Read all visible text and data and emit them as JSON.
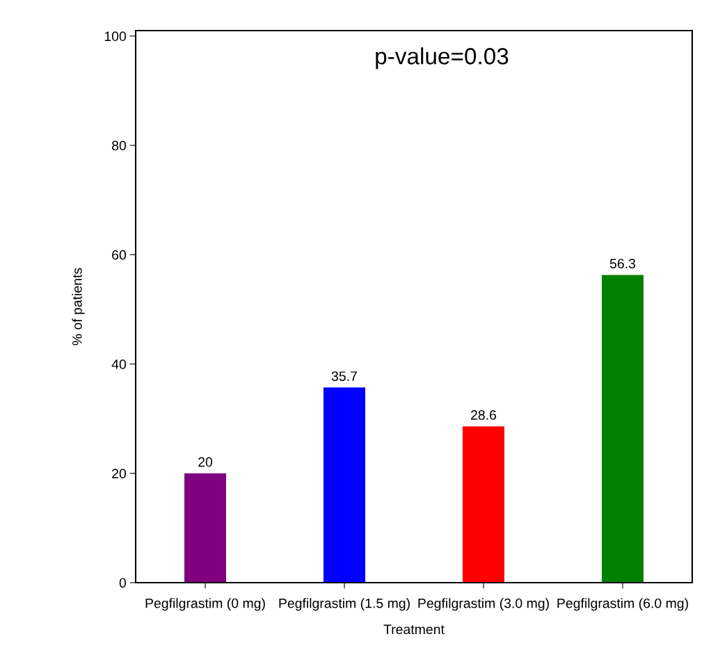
{
  "chart_data": {
    "type": "bar",
    "categories": [
      "Pegfilgrastim (0 mg)",
      "Pegfilgrastim (1.5 mg)",
      "Pegfilgrastim (3.0 mg)",
      "Pegfilgrastim (6.0 mg)"
    ],
    "values": [
      20,
      35.7,
      28.6,
      56.3
    ],
    "colors": [
      "#800080",
      "#0000ff",
      "#ff0000",
      "#008000"
    ],
    "xlabel": "Treatment",
    "ylabel": "% of patients",
    "annotations": [
      "p-value=0.03"
    ],
    "ylim": [
      0,
      101
    ],
    "yticks": [
      0,
      20,
      40,
      60,
      80,
      100
    ],
    "data_labels": true,
    "grid": false
  }
}
